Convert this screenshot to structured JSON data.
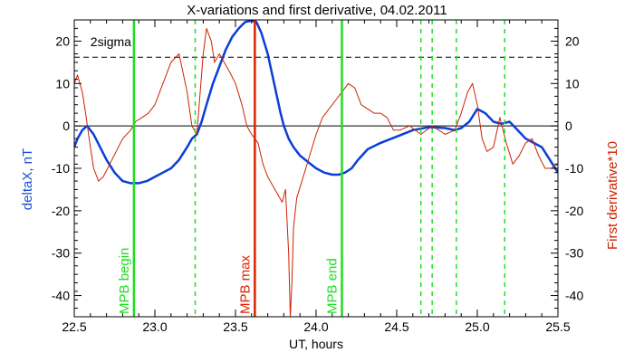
{
  "chart_data": {
    "type": "line",
    "title": "X-variations and first derivative, 04.02.2011",
    "xlabel": "UT, hours",
    "ylabel_left": "deltaX, nT",
    "ylabel_right": "First derivative*10",
    "xlim": [
      22.5,
      25.5
    ],
    "ylim": [
      -45,
      25
    ],
    "x_ticks": [
      22.5,
      23.0,
      23.5,
      24.0,
      24.5,
      25.0,
      25.5
    ],
    "x_tick_labels": [
      "22.5",
      "23.0",
      "23.5",
      "24.0",
      "24.5",
      "25.0",
      "25.5"
    ],
    "y_ticks": [
      -40,
      -30,
      -20,
      -10,
      0,
      10,
      20
    ],
    "y_tick_labels": [
      "-40",
      "-30",
      "-20",
      "-10",
      "0",
      "10",
      "20"
    ],
    "zero_line": 0,
    "sigma": {
      "label": "2sigma",
      "value": 16.2
    },
    "series": [
      {
        "color": "#0a3fd6",
        "x": [
          22.5,
          22.52,
          22.55,
          22.58,
          22.62,
          22.66,
          22.7,
          22.75,
          22.8,
          22.85,
          22.9,
          22.95,
          23.0,
          23.05,
          23.1,
          23.15,
          23.2,
          23.23,
          23.26,
          23.29,
          23.32,
          23.36,
          23.4,
          23.44,
          23.48,
          23.52,
          23.56,
          23.6,
          23.63,
          23.66,
          23.7,
          23.74,
          23.78,
          23.8,
          23.83,
          23.86,
          23.9,
          23.95,
          24.0,
          24.05,
          24.1,
          24.14,
          24.18,
          24.22,
          24.26,
          24.32,
          24.4,
          24.5,
          24.6,
          24.7,
          24.8,
          24.86,
          24.9,
          24.95,
          25.0,
          25.05,
          25.1,
          25.15,
          25.2,
          25.25,
          25.3,
          25.35,
          25.4,
          25.45,
          25.5
        ],
        "values": [
          -5,
          -3,
          -1,
          0,
          -2,
          -5,
          -8,
          -11,
          -13,
          -13.5,
          -13.5,
          -13,
          -12,
          -11,
          -10,
          -8,
          -5,
          -3,
          -2,
          1,
          5,
          10,
          14,
          18,
          21,
          23,
          24.5,
          24.8,
          24.5,
          22,
          17,
          10,
          3,
          0,
          -3,
          -5,
          -7,
          -8.5,
          -10,
          -11,
          -11.5,
          -11.5,
          -11,
          -10,
          -8,
          -5.5,
          -4,
          -2.5,
          -1,
          -0.3,
          -0.5,
          -1,
          -0.5,
          1,
          4,
          3,
          1,
          0.5,
          1,
          -1,
          -3,
          -4,
          -5,
          -8,
          -11
        ]
      },
      {
        "color": "#cc2200",
        "x": [
          22.5,
          22.52,
          22.55,
          22.57,
          22.6,
          22.62,
          22.65,
          22.68,
          22.72,
          22.76,
          22.8,
          22.85,
          22.88,
          22.92,
          22.96,
          23.0,
          23.05,
          23.1,
          23.15,
          23.2,
          23.23,
          23.26,
          23.3,
          23.32,
          23.35,
          23.37,
          23.4,
          23.43,
          23.46,
          23.5,
          23.54,
          23.57,
          23.6,
          23.62,
          23.64,
          23.67,
          23.7,
          23.73,
          23.76,
          23.79,
          23.81,
          23.83,
          23.84,
          23.85,
          23.86,
          23.88,
          23.92,
          23.96,
          24.0,
          24.04,
          24.08,
          24.12,
          24.16,
          24.2,
          24.24,
          24.28,
          24.32,
          24.36,
          24.4,
          24.44,
          24.48,
          24.52,
          24.58,
          24.65,
          24.72,
          24.8,
          24.86,
          24.9,
          24.94,
          24.97,
          25.0,
          25.03,
          25.06,
          25.1,
          25.14,
          25.18,
          25.22,
          25.26,
          25.3,
          25.34,
          25.38,
          25.42,
          25.46,
          25.5
        ],
        "values": [
          10,
          12,
          8,
          3,
          -5,
          -10,
          -13,
          -12,
          -9,
          -6,
          -3,
          -1,
          1,
          2,
          3,
          5,
          10,
          15,
          17,
          8,
          0,
          -2,
          17,
          23,
          20,
          15,
          17,
          15,
          13,
          10,
          5,
          0,
          -2,
          -3,
          -4,
          -9,
          -12,
          -14,
          -16,
          -18,
          -15,
          -30,
          -45,
          -37,
          -24,
          -17,
          -12,
          -7,
          -2,
          2,
          4,
          6,
          8,
          10,
          9,
          5,
          4,
          3,
          3,
          2,
          -1,
          -1,
          0,
          -2,
          0,
          -2,
          -1,
          3,
          8,
          10,
          5,
          -3,
          -6,
          -5,
          2,
          -4,
          -9,
          -7,
          -4,
          -3,
          -7,
          -10,
          -10,
          -9
        ]
      }
    ],
    "markers": [
      {
        "x": 22.87,
        "label": "MPB begin",
        "color": "#22dd22",
        "style": "solid"
      },
      {
        "x": 23.25,
        "label": "",
        "color": "#22dd22",
        "style": "dashed"
      },
      {
        "x": 23.62,
        "label": "MPB max",
        "color": "#dd2200",
        "style": "solid"
      },
      {
        "x": 24.16,
        "label": "MPB end",
        "color": "#22dd22",
        "style": "solid"
      },
      {
        "x": 24.65,
        "label": "",
        "color": "#22dd22",
        "style": "dashed"
      },
      {
        "x": 24.72,
        "label": "",
        "color": "#22dd22",
        "style": "dashed"
      },
      {
        "x": 24.87,
        "label": "",
        "color": "#22dd22",
        "style": "dashed"
      },
      {
        "x": 25.17,
        "label": "",
        "color": "#22dd22",
        "style": "dashed"
      }
    ]
  }
}
